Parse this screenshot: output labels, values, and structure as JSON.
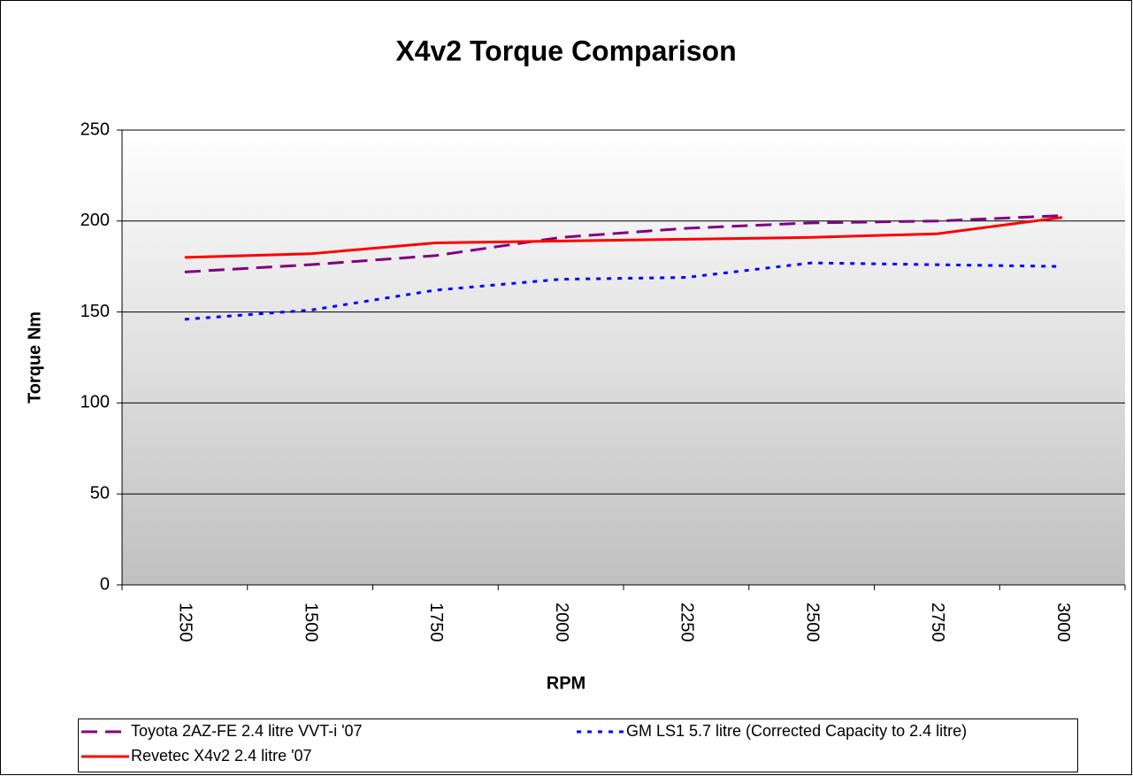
{
  "chart_data": {
    "type": "line",
    "title": "X4v2 Torque Comparison",
    "x_label": "RPM",
    "y_label": "Torque Nm",
    "categories": [
      "1250",
      "1500",
      "1750",
      "2000",
      "2250",
      "2500",
      "2750",
      "3000"
    ],
    "series": [
      {
        "name": "Toyota 2AZ-FE 2.4 litre VVT-i '07",
        "color": "#800080",
        "dash": "dashed",
        "values": [
          172,
          176,
          181,
          191,
          196,
          199,
          200,
          203
        ]
      },
      {
        "name": "GM LS1 5.7 litre (Corrected Capacity to 2.4 litre)",
        "color": "#0000ff",
        "dash": "dotted",
        "values": [
          146,
          151,
          162,
          168,
          169,
          177,
          176,
          175
        ]
      },
      {
        "name": "Revetec X4v2 2.4 litre '07",
        "color": "#ff0000",
        "dash": "solid",
        "values": [
          180,
          182,
          188,
          189,
          190,
          191,
          193,
          202
        ]
      }
    ],
    "ylim": [
      0,
      250
    ],
    "yticks": [
      0,
      50,
      100,
      150,
      200,
      250
    ],
    "grid": true,
    "legend": "bottom"
  }
}
